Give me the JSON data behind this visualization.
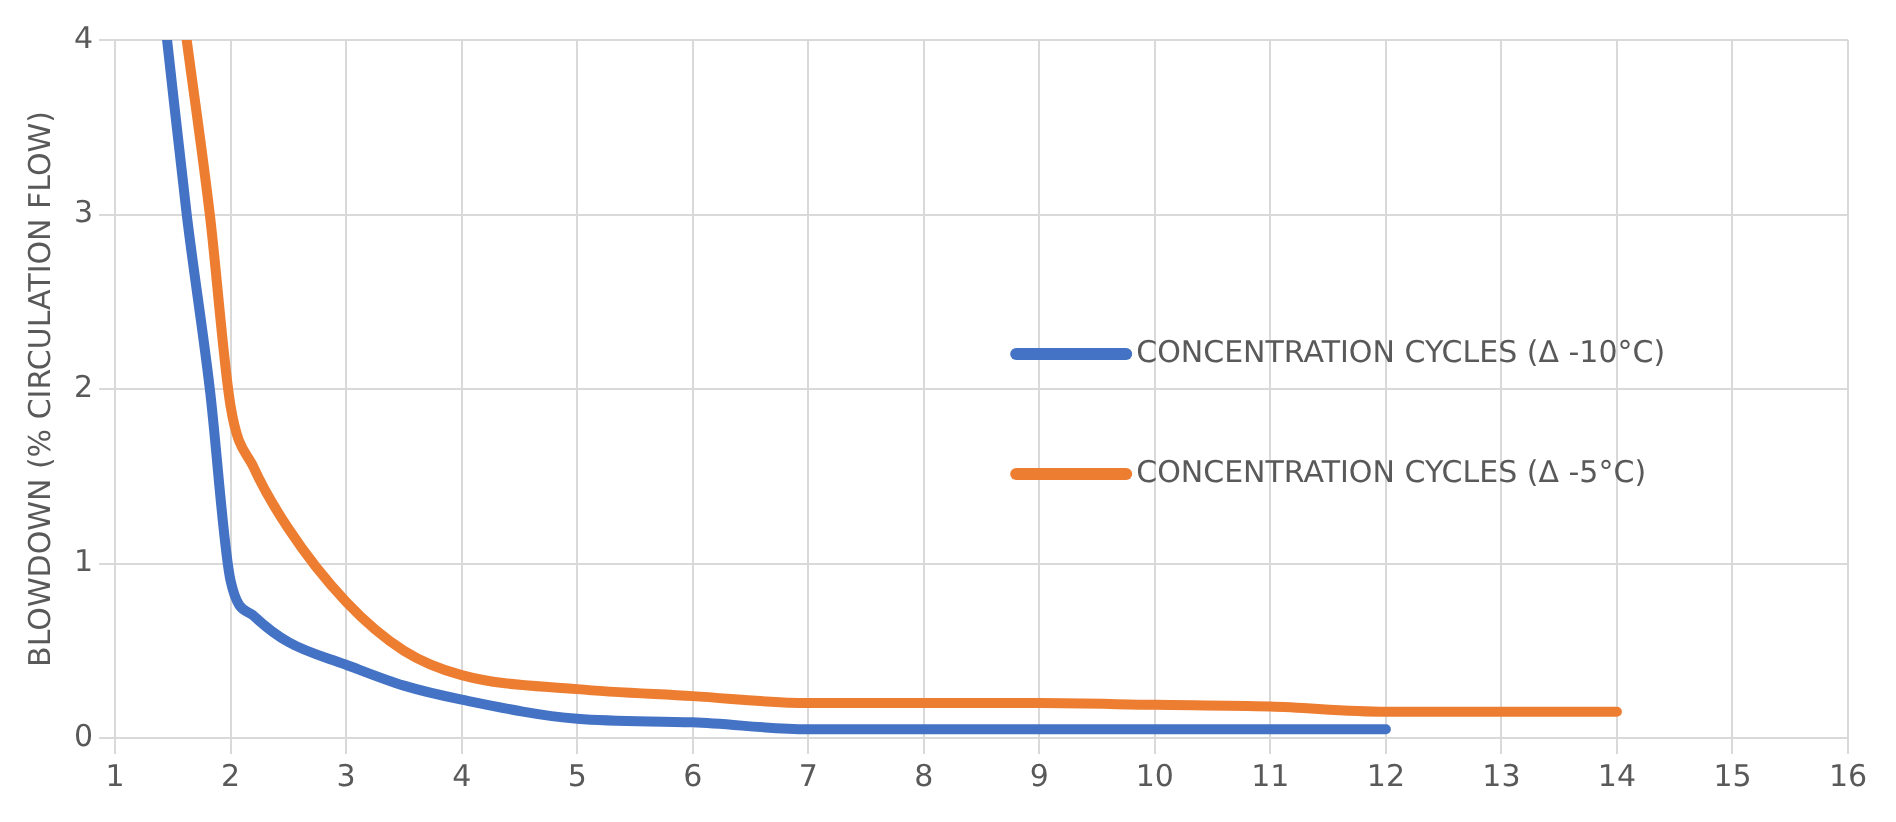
{
  "chart_data": {
    "type": "line",
    "ylabel": "BLOWDOWN (% CIRCULATION FLOW)",
    "xlim": [
      1,
      16
    ],
    "xticks": [
      1,
      2,
      3,
      4,
      5,
      6,
      7,
      8,
      9,
      10,
      11,
      12,
      13,
      14,
      15,
      16
    ],
    "ylim": [
      0,
      4
    ],
    "yticks": [
      0,
      1,
      2,
      3,
      4
    ],
    "grid": true,
    "legend": "right",
    "marker": "none",
    "line_style": "solid",
    "series": [
      {
        "name": "CONCENTRATION CYCLES (Δ -10°C)",
        "color": "#4472c4",
        "x": [
          1.45,
          1.62,
          1.82,
          2,
          2.2,
          2.5,
          3,
          3.5,
          4,
          5,
          6,
          7,
          8,
          9,
          10,
          11,
          12
        ],
        "values": [
          4,
          3,
          2,
          0.9,
          0.7,
          0.55,
          0.42,
          0.3,
          0.22,
          0.11,
          0.09,
          0.05,
          0.05,
          0.05,
          0.05,
          0.05,
          0.05
        ]
      },
      {
        "name": "CONCENTRATION CYCLES (Δ -5°C)",
        "color": "#ed7d31",
        "x": [
          1.62,
          1.82,
          2,
          2.2,
          2.5,
          3,
          3.5,
          4,
          5,
          6,
          7,
          8,
          9,
          10,
          11,
          12,
          13,
          14
        ],
        "values": [
          4,
          3,
          1.9,
          1.55,
          1.2,
          0.78,
          0.5,
          0.36,
          0.28,
          0.24,
          0.2,
          0.2,
          0.2,
          0.19,
          0.18,
          0.15,
          0.15,
          0.15
        ]
      }
    ]
  }
}
